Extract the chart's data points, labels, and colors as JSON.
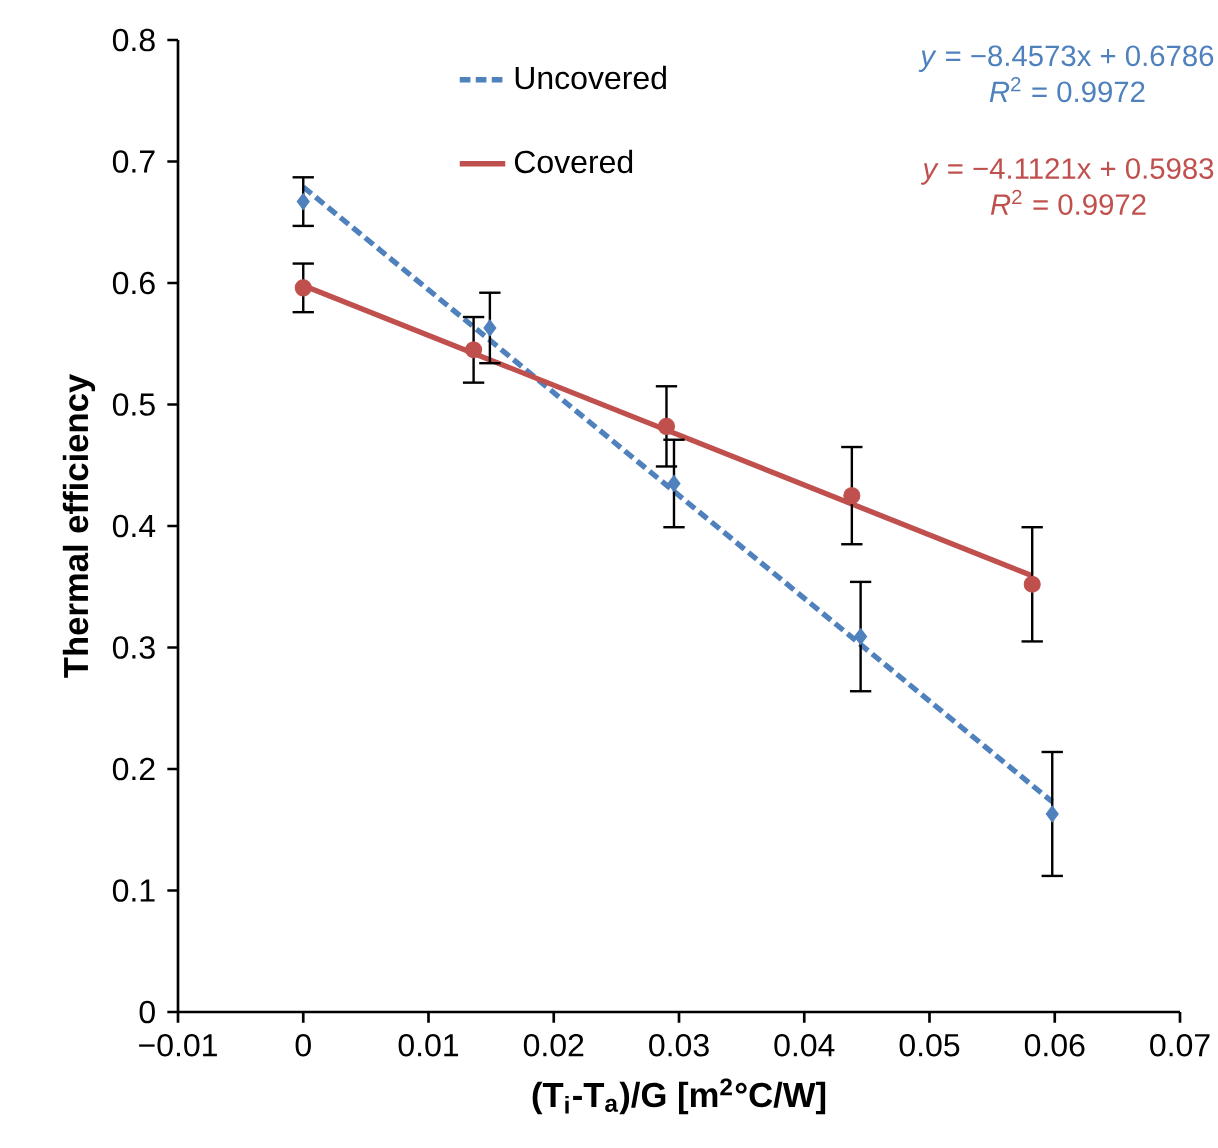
{
  "chart_data": {
    "type": "scatter",
    "xlabel": "(T$_{i}$-T$_{a}$)/G [m$^{2}$°C/W]",
    "ylabel": "Thermal efficiency",
    "xlim": [
      -0.01,
      0.07
    ],
    "xticks": [
      {
        "value": -0.01,
        "label": "−0.01"
      },
      0,
      0.01,
      0.02,
      0.03,
      0.04,
      0.05,
      0.06,
      0.07
    ],
    "ylim": [
      0,
      0.8
    ],
    "yticks": [
      0,
      0.1,
      0.2,
      0.3,
      0.4,
      0.5,
      0.6,
      0.7,
      0.8
    ],
    "legend": "top",
    "series": [
      {
        "type": "scatter",
        "color": "#4f81bd",
        "marker": "diamond",
        "x": [
          0,
          0.0149,
          0.0296,
          0.0445,
          0.0598
        ],
        "values": [
          0.667,
          0.563,
          0.435,
          0.309,
          0.163
        ],
        "errors": [
          0.02,
          0.029,
          0.036,
          0.045,
          0.051
        ]
      },
      {
        "type": "scatter",
        "color": "#c0504d",
        "marker": "circle",
        "x": [
          0,
          0.0136,
          0.029,
          0.0438,
          0.0582
        ],
        "values": [
          0.596,
          0.545,
          0.482,
          0.425,
          0.352
        ],
        "errors": [
          0.02,
          0.027,
          0.033,
          0.04,
          0.047
        ]
      },
      {
        "type": "line",
        "name": "Uncovered",
        "color": "#4f81bd",
        "line_style": "dashed",
        "marker": "none",
        "x": [
          0,
          0.0598
        ],
        "values": [
          0.679,
          0.173
        ]
      },
      {
        "type": "line",
        "name": "Covered",
        "color": "#c0504d",
        "line_style": "solid",
        "marker": "none",
        "x": [
          0,
          0.0582
        ],
        "values": [
          0.598,
          0.359
        ]
      }
    ],
    "annotations": [
      "*y* = −8.4573x + 0.6786",
      "*R*$^{2}$ = 0.9972",
      "*y* = −4.1121x + 0.5983",
      "*R*$^{2}$ = 0.9972"
    ]
  }
}
